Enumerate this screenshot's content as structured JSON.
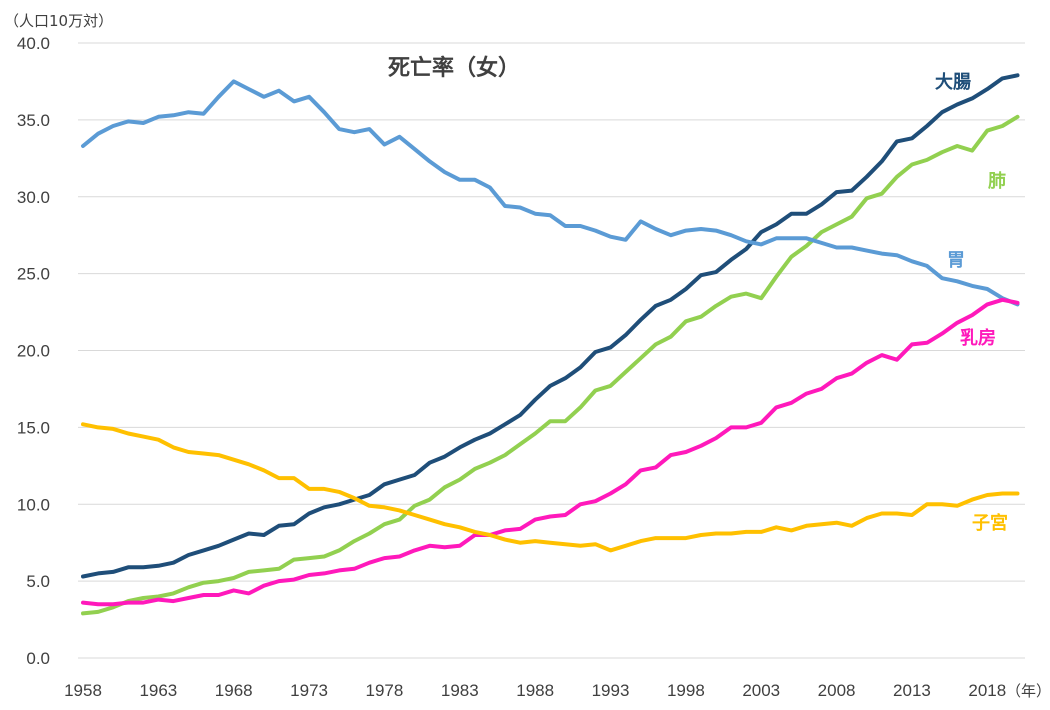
{
  "chart_data": {
    "type": "line",
    "title": "死亡率（女）",
    "ylabel": "（人口10万対）",
    "xlabel": "（年）",
    "ylim": [
      0,
      40
    ],
    "yticks": [
      "0.0",
      "5.0",
      "10.0",
      "15.0",
      "20.0",
      "25.0",
      "30.0",
      "35.0",
      "40.0"
    ],
    "xticks": [
      "1958",
      "1963",
      "1968",
      "1973",
      "1978",
      "1983",
      "1988",
      "1993",
      "1998",
      "2003",
      "2008",
      "2013",
      "2018"
    ],
    "grid": true,
    "x": [
      1958,
      1959,
      1960,
      1961,
      1962,
      1963,
      1964,
      1965,
      1966,
      1967,
      1968,
      1969,
      1970,
      1971,
      1972,
      1973,
      1974,
      1975,
      1976,
      1977,
      1978,
      1979,
      1980,
      1981,
      1982,
      1983,
      1984,
      1985,
      1986,
      1987,
      1988,
      1989,
      1990,
      1991,
      1992,
      1993,
      1994,
      1995,
      1996,
      1997,
      1998,
      1999,
      2000,
      2001,
      2002,
      2003,
      2004,
      2005,
      2006,
      2007,
      2008,
      2009,
      2010,
      2011,
      2012,
      2013,
      2014,
      2015,
      2016,
      2017,
      2018,
      2019,
      2020
    ],
    "series": [
      {
        "name": "大腸",
        "color": "#1f4e79",
        "values": [
          5.3,
          5.5,
          5.6,
          5.9,
          5.9,
          6.0,
          6.2,
          6.7,
          7.0,
          7.3,
          7.7,
          8.1,
          8.0,
          8.6,
          8.7,
          9.4,
          9.8,
          10.0,
          10.3,
          10.6,
          11.3,
          11.6,
          11.9,
          12.7,
          13.1,
          13.7,
          14.2,
          14.6,
          15.2,
          15.8,
          16.8,
          17.7,
          18.2,
          18.9,
          19.9,
          20.2,
          21.0,
          22.0,
          22.9,
          23.3,
          24.0,
          24.9,
          25.1,
          25.9,
          26.6,
          27.7,
          28.2,
          28.9,
          28.9,
          29.5,
          30.3,
          30.4,
          31.3,
          32.3,
          33.6,
          33.8,
          34.6,
          35.5,
          36.0,
          36.4,
          37.0,
          37.7,
          37.9
        ]
      },
      {
        "name": "肺",
        "color": "#92d050",
        "values": [
          2.9,
          3.0,
          3.3,
          3.7,
          3.9,
          4.0,
          4.2,
          4.6,
          4.9,
          5.0,
          5.2,
          5.6,
          5.7,
          5.8,
          6.4,
          6.5,
          6.6,
          7.0,
          7.6,
          8.1,
          8.7,
          9.0,
          9.9,
          10.3,
          11.1,
          11.6,
          12.3,
          12.7,
          13.2,
          13.9,
          14.6,
          15.4,
          15.4,
          16.3,
          17.4,
          17.7,
          18.6,
          19.5,
          20.4,
          20.9,
          21.9,
          22.2,
          22.9,
          23.5,
          23.7,
          23.4,
          24.8,
          26.1,
          26.8,
          27.7,
          28.2,
          28.7,
          29.9,
          30.2,
          31.3,
          32.1,
          32.4,
          32.9,
          33.3,
          33.0,
          34.3,
          34.6,
          35.2
        ]
      },
      {
        "name": "胃",
        "color": "#5b9bd5",
        "values": [
          33.3,
          34.1,
          34.6,
          34.9,
          34.8,
          35.2,
          35.3,
          35.5,
          35.4,
          36.5,
          37.5,
          37.0,
          36.5,
          36.9,
          36.2,
          36.5,
          35.5,
          34.4,
          34.2,
          34.4,
          33.4,
          33.9,
          33.1,
          32.3,
          31.6,
          31.1,
          31.1,
          30.6,
          29.4,
          29.3,
          28.9,
          28.8,
          28.1,
          28.1,
          27.8,
          27.4,
          27.2,
          28.4,
          27.9,
          27.5,
          27.8,
          27.9,
          27.8,
          27.5,
          27.1,
          26.9,
          27.3,
          27.3,
          27.3,
          27.0,
          26.7,
          26.7,
          26.5,
          26.3,
          26.2,
          25.8,
          25.5,
          24.7,
          24.5,
          24.2,
          24.0,
          23.4,
          23.0
        ]
      },
      {
        "name": "乳房",
        "color": "#ff19bb",
        "values": [
          3.6,
          3.5,
          3.5,
          3.6,
          3.6,
          3.8,
          3.7,
          3.9,
          4.1,
          4.1,
          4.4,
          4.2,
          4.7,
          5.0,
          5.1,
          5.4,
          5.5,
          5.7,
          5.8,
          6.2,
          6.5,
          6.6,
          7.0,
          7.3,
          7.2,
          7.3,
          8.0,
          8.0,
          8.3,
          8.4,
          9.0,
          9.2,
          9.3,
          10.0,
          10.2,
          10.7,
          11.3,
          12.2,
          12.4,
          13.2,
          13.4,
          13.8,
          14.3,
          15.0,
          15.0,
          15.3,
          16.3,
          16.6,
          17.2,
          17.5,
          18.2,
          18.5,
          19.2,
          19.7,
          19.4,
          20.4,
          20.5,
          21.1,
          21.8,
          22.3,
          23.0,
          23.3,
          23.1
        ]
      },
      {
        "name": "子宮",
        "color": "#ffc000",
        "values": [
          15.2,
          15.0,
          14.9,
          14.6,
          14.4,
          14.2,
          13.7,
          13.4,
          13.3,
          13.2,
          12.9,
          12.6,
          12.2,
          11.7,
          11.7,
          11.0,
          11.0,
          10.8,
          10.4,
          9.9,
          9.8,
          9.6,
          9.3,
          9.0,
          8.7,
          8.5,
          8.2,
          8.0,
          7.7,
          7.5,
          7.6,
          7.5,
          7.4,
          7.3,
          7.4,
          7.0,
          7.3,
          7.6,
          7.8,
          7.8,
          7.8,
          8.0,
          8.1,
          8.1,
          8.2,
          8.2,
          8.5,
          8.3,
          8.6,
          8.7,
          8.8,
          8.6,
          9.1,
          9.4,
          9.4,
          9.3,
          10.0,
          10.0,
          9.9,
          10.3,
          10.6,
          10.7,
          10.7
        ]
      }
    ]
  }
}
